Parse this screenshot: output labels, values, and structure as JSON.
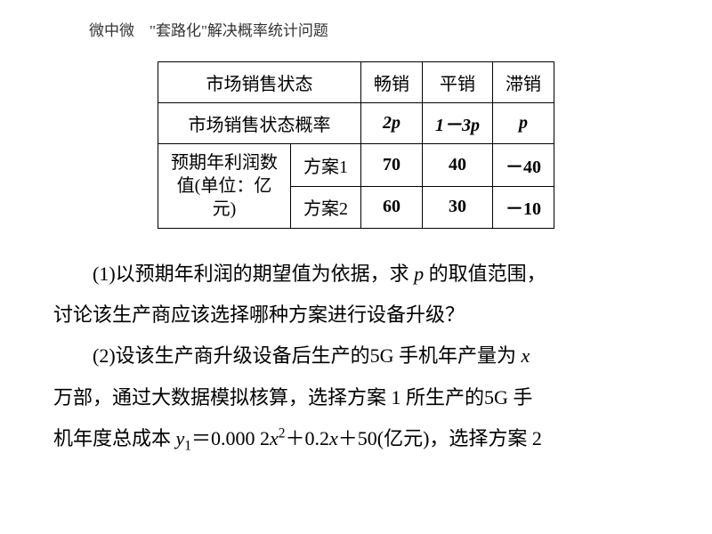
{
  "header": "微中微　\"套路化\"解决概率统计问题",
  "table": {
    "r1c1": "市场销售状态",
    "r1c2": "畅销",
    "r1c3": "平销",
    "r1c4": "滞销",
    "r2c1": "市场销售状态概率",
    "r2c2": "2p",
    "r2c3": "1－3p",
    "r2c4": "p",
    "r3c1a": "预期年利润数",
    "r3c1b": "值(单位：亿",
    "r3c1c": "元)",
    "r3c2": "方案1",
    "r3c3": "70",
    "r3c4": "40",
    "r3c5": "－40",
    "r4c2": "方案2",
    "r4c3": "60",
    "r4c4": "30",
    "r4c5": "－10"
  },
  "para1_a": "(1)以预期年利润的期望值为依据，求 ",
  "para1_b": " 的取值范围，",
  "para1_c": "讨论该生产商应该选择哪种方案进行设备升级？",
  "para2_a": "(2)设该生产商升级设备后生产的5G 手机年产量为 ",
  "para2_b": "万部，通过大数据模拟核算，选择方案 1 所生产的5G 手",
  "para2_c1": "机年度总成本 ",
  "para2_c2": "＝0.000 2",
  "para2_c3": "＋0.2",
  "para2_c4": "＋50(亿元)，选择方案 2",
  "vars": {
    "p": "p",
    "x": "x",
    "y1": "y",
    "one": "1",
    "two": "2"
  },
  "style": {
    "background": "#ffffff",
    "text_color": "#000000",
    "header_fontsize": 17,
    "body_fontsize": 22,
    "table_fontsize": 20,
    "border_color": "#000000"
  }
}
